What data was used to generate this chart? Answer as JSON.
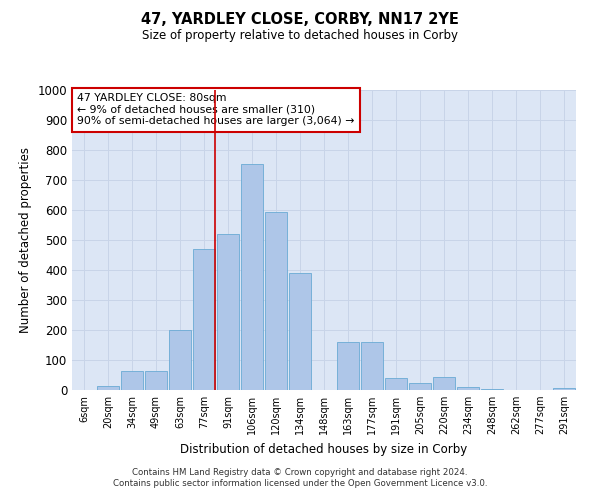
{
  "title": "47, YARDLEY CLOSE, CORBY, NN17 2YE",
  "subtitle": "Size of property relative to detached houses in Corby",
  "xlabel": "Distribution of detached houses by size in Corby",
  "ylabel": "Number of detached properties",
  "categories": [
    "6sqm",
    "20sqm",
    "34sqm",
    "49sqm",
    "63sqm",
    "77sqm",
    "91sqm",
    "106sqm",
    "120sqm",
    "134sqm",
    "148sqm",
    "163sqm",
    "177sqm",
    "191sqm",
    "205sqm",
    "220sqm",
    "234sqm",
    "248sqm",
    "262sqm",
    "277sqm",
    "291sqm"
  ],
  "values": [
    0,
    13,
    65,
    65,
    200,
    470,
    520,
    755,
    595,
    390,
    0,
    160,
    160,
    40,
    22,
    43,
    10,
    5,
    0,
    0,
    8
  ],
  "bar_color": "#aec6e8",
  "bar_edge_color": "#6aaad4",
  "vline_color": "#cc0000",
  "vline_x_index": 5,
  "annotation_text": "47 YARDLEY CLOSE: 80sqm\n← 9% of detached houses are smaller (310)\n90% of semi-detached houses are larger (3,064) →",
  "annotation_box_color": "#ffffff",
  "annotation_box_edge_color": "#cc0000",
  "ylim": [
    0,
    1000
  ],
  "yticks": [
    0,
    100,
    200,
    300,
    400,
    500,
    600,
    700,
    800,
    900,
    1000
  ],
  "grid_color": "#c8d4e8",
  "bg_color": "#dce6f5",
  "footer": "Contains HM Land Registry data © Crown copyright and database right 2024.\nContains public sector information licensed under the Open Government Licence v3.0."
}
